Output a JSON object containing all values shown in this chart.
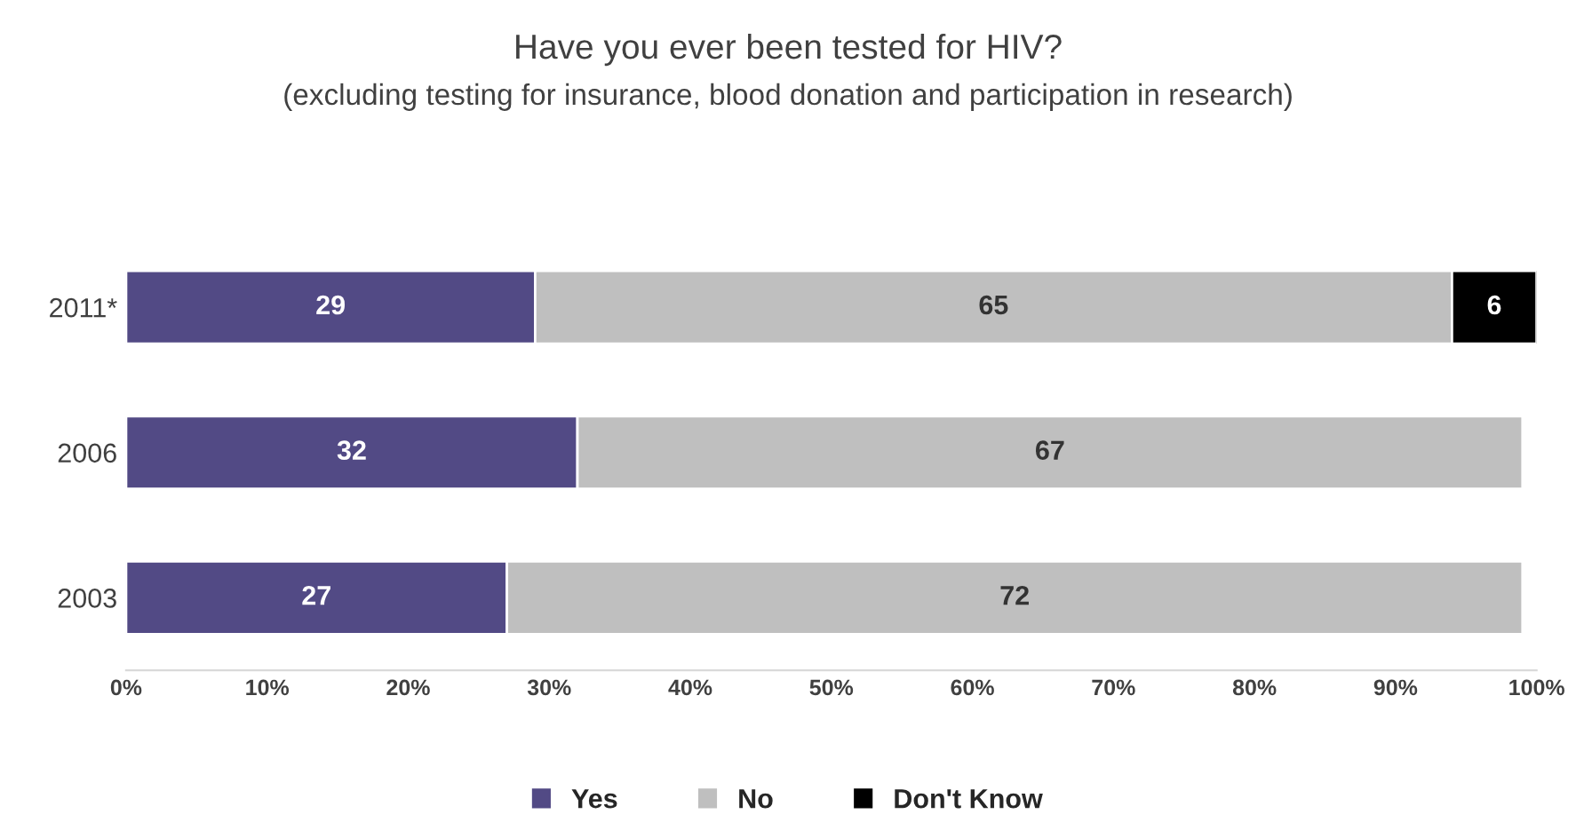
{
  "chart_data": {
    "type": "bar",
    "orientation": "horizontal",
    "stacked": true,
    "title": "Have you ever been tested for HIV?",
    "subtitle": "(excluding testing for insurance, blood donation and participation in research)",
    "categories": [
      "2011*",
      "2006",
      "2003"
    ],
    "series": [
      {
        "name": "Yes",
        "color": "#524a85",
        "values": [
          29,
          32,
          27
        ]
      },
      {
        "name": "No",
        "color": "#bfbfbf",
        "values": [
          65,
          67,
          72
        ]
      },
      {
        "name": "Don't Know",
        "color": "#000000",
        "values": [
          6,
          null,
          null
        ]
      }
    ],
    "xlim": [
      0,
      100
    ],
    "xticks": [
      {
        "value": 0,
        "label": "0%"
      },
      {
        "value": 10,
        "label": "10%"
      },
      {
        "value": 20,
        "label": "20%"
      },
      {
        "value": 30,
        "label": "30%"
      },
      {
        "value": 40,
        "label": "40%"
      },
      {
        "value": 50,
        "label": "50%"
      },
      {
        "value": 60,
        "label": "60%"
      },
      {
        "value": 70,
        "label": "70%"
      },
      {
        "value": 80,
        "label": "80%"
      },
      {
        "value": 90,
        "label": "90%"
      },
      {
        "value": 100,
        "label": "100%"
      }
    ],
    "data_labels": true,
    "legend": "bottom"
  }
}
